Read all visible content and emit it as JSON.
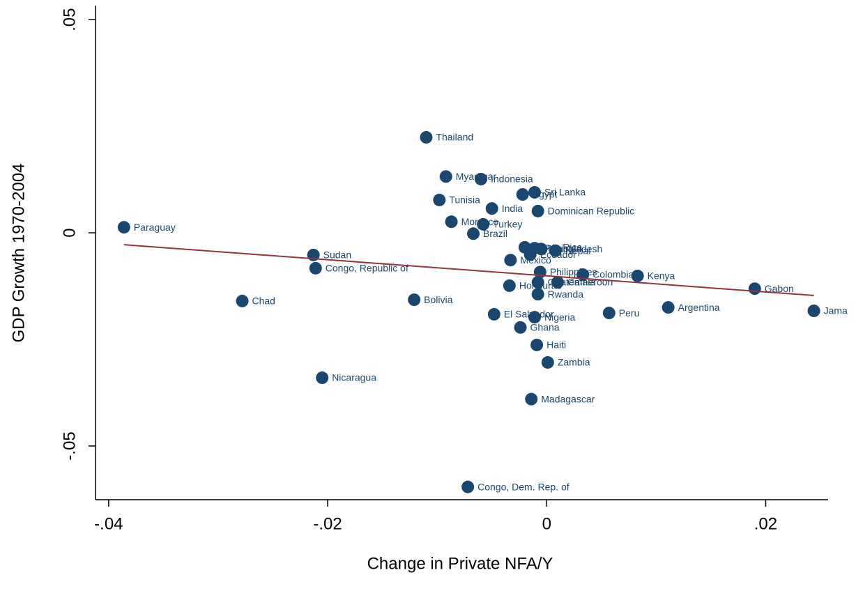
{
  "chart_data": {
    "type": "scatter",
    "x_label": "Change in Private NFA/Y",
    "y_label": "GDP Growth 1970-2004",
    "point_labels": [
      "Paraguay",
      "Chad",
      "Sudan",
      "Congo, Republic of",
      "Nicaragua",
      "Bolivia",
      "Thailand",
      "Myanmar",
      "Tunisia",
      "Morocco",
      "Indonesia",
      "Turkey",
      "Brazil",
      "India",
      "Egypt",
      "Sri Lanka",
      "Dominican Republic",
      "Costa Rica",
      "Mexico",
      "Ecuador",
      "Pakistan",
      "Bangladesh",
      "Nepal",
      "Philippines",
      "Guatemala",
      "Cameroon",
      "Colombia",
      "Honduras",
      "Rwanda",
      "El Salvador",
      "Nigeria",
      "Ghana",
      "Haiti",
      "Zambia",
      "Madagascar",
      "Congo, Dem. Rep. of",
      "Kenya",
      "Peru",
      "Argentina",
      "Gabon",
      "Jama"
    ],
    "x": [
      -0.0386,
      -0.0278,
      -0.0213,
      -0.0211,
      -0.0205,
      -0.0121,
      -0.011,
      -0.0092,
      -0.0098,
      -0.0087,
      -0.006,
      -0.0058,
      -0.0067,
      -0.005,
      -0.0022,
      -0.0011,
      -0.0008,
      -0.002,
      -0.0033,
      -0.0015,
      -0.0011,
      -0.0005,
      0.0008,
      -0.0006,
      -0.0008,
      0.001,
      0.0033,
      -0.0034,
      -0.0008,
      -0.0048,
      -0.0011,
      -0.0024,
      -0.0009,
      0.0001,
      -0.0014,
      -0.0072,
      0.0083,
      0.0057,
      0.0111,
      0.019,
      0.0244
    ],
    "y": [
      0.0013,
      -0.016,
      -0.0052,
      -0.0083,
      -0.034,
      -0.0157,
      0.0224,
      0.0132,
      0.0077,
      0.0026,
      0.0126,
      0.002,
      -0.0002,
      0.0057,
      0.009,
      0.0095,
      0.0051,
      -0.0034,
      -0.0064,
      -0.0051,
      -0.0036,
      -0.0038,
      -0.0042,
      -0.0092,
      -0.0116,
      -0.0116,
      -0.0098,
      -0.0124,
      -0.0144,
      -0.0191,
      -0.0198,
      -0.0222,
      -0.0263,
      -0.0304,
      -0.039,
      -0.0596,
      -0.0101,
      -0.0188,
      -0.0175,
      -0.0131,
      -0.0183
    ],
    "color": "#1a476f",
    "fit": {
      "x": [
        -0.0386,
        0.0244
      ],
      "y": [
        -0.0028,
        -0.0147
      ],
      "color": "#90353b"
    },
    "xlim": [
      -0.0412,
      0.0257
    ],
    "ylim": [
      -0.0626,
      0.0533
    ],
    "xticks": [
      {
        "value": -0.04,
        "label": "-.04"
      },
      {
        "value": -0.02,
        "label": "-.02"
      },
      0,
      {
        "value": 0.02,
        "label": ".02"
      }
    ],
    "yticks": [
      {
        "value": -0.05,
        "label": "-.05"
      },
      0,
      {
        "value": 0.05,
        "label": ".05"
      }
    ]
  }
}
